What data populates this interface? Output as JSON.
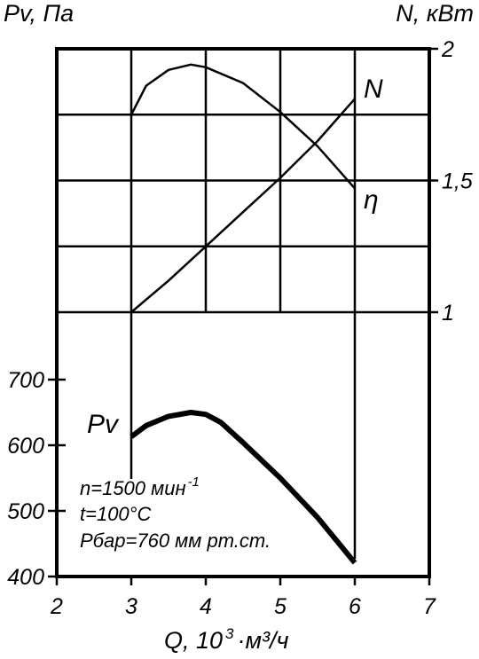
{
  "chart_data": {
    "type": "line",
    "y_left_title": "Pv, Па",
    "y_right_title": "N, кВт",
    "x_title": {
      "prefix": "Q, 10",
      "exponent": "3",
      "suffix": "·м³/ч"
    },
    "x_ticks": [
      "2",
      "3",
      "4",
      "5",
      "6",
      "7"
    ],
    "x_range": [
      2,
      7
    ],
    "y_left_ticks": [
      "400",
      "500",
      "600",
      "700"
    ],
    "y_left_range": [
      400,
      700
    ],
    "y_right_ticks": [
      "1",
      "1,5",
      "2"
    ],
    "y_right_range": [
      1,
      2
    ],
    "grid": true,
    "series": [
      {
        "name": "Pv",
        "axis": "left",
        "points": [
          [
            3.0,
            613
          ],
          [
            3.2,
            630
          ],
          [
            3.5,
            644
          ],
          [
            3.8,
            650
          ],
          [
            4.0,
            647
          ],
          [
            4.2,
            635
          ],
          [
            4.5,
            604
          ],
          [
            5.0,
            550
          ],
          [
            5.5,
            490
          ],
          [
            6.0,
            421
          ]
        ]
      },
      {
        "name": "N",
        "axis": "right",
        "points": [
          [
            3.0,
            1.0
          ],
          [
            3.5,
            1.12
          ],
          [
            4.0,
            1.25
          ],
          [
            4.5,
            1.38
          ],
          [
            5.0,
            1.51
          ],
          [
            5.5,
            1.65
          ],
          [
            6.0,
            1.81
          ]
        ]
      },
      {
        "name": "η",
        "axis": "none",
        "points": [
          [
            3.0,
            1.75
          ],
          [
            3.2,
            1.86
          ],
          [
            3.5,
            1.92
          ],
          [
            3.8,
            1.94
          ],
          [
            4.0,
            1.93
          ],
          [
            4.5,
            1.87
          ],
          [
            5.0,
            1.76
          ],
          [
            5.5,
            1.63
          ],
          [
            6.0,
            1.47
          ]
        ]
      }
    ],
    "annotations": [
      {
        "id": "rpm",
        "prefix": "n=1500 мин",
        "exponent": "-1"
      },
      {
        "id": "temp",
        "text": "t=100°C"
      },
      {
        "id": "pressure",
        "text": "Pбар=760 мм рт.ст."
      }
    ]
  }
}
